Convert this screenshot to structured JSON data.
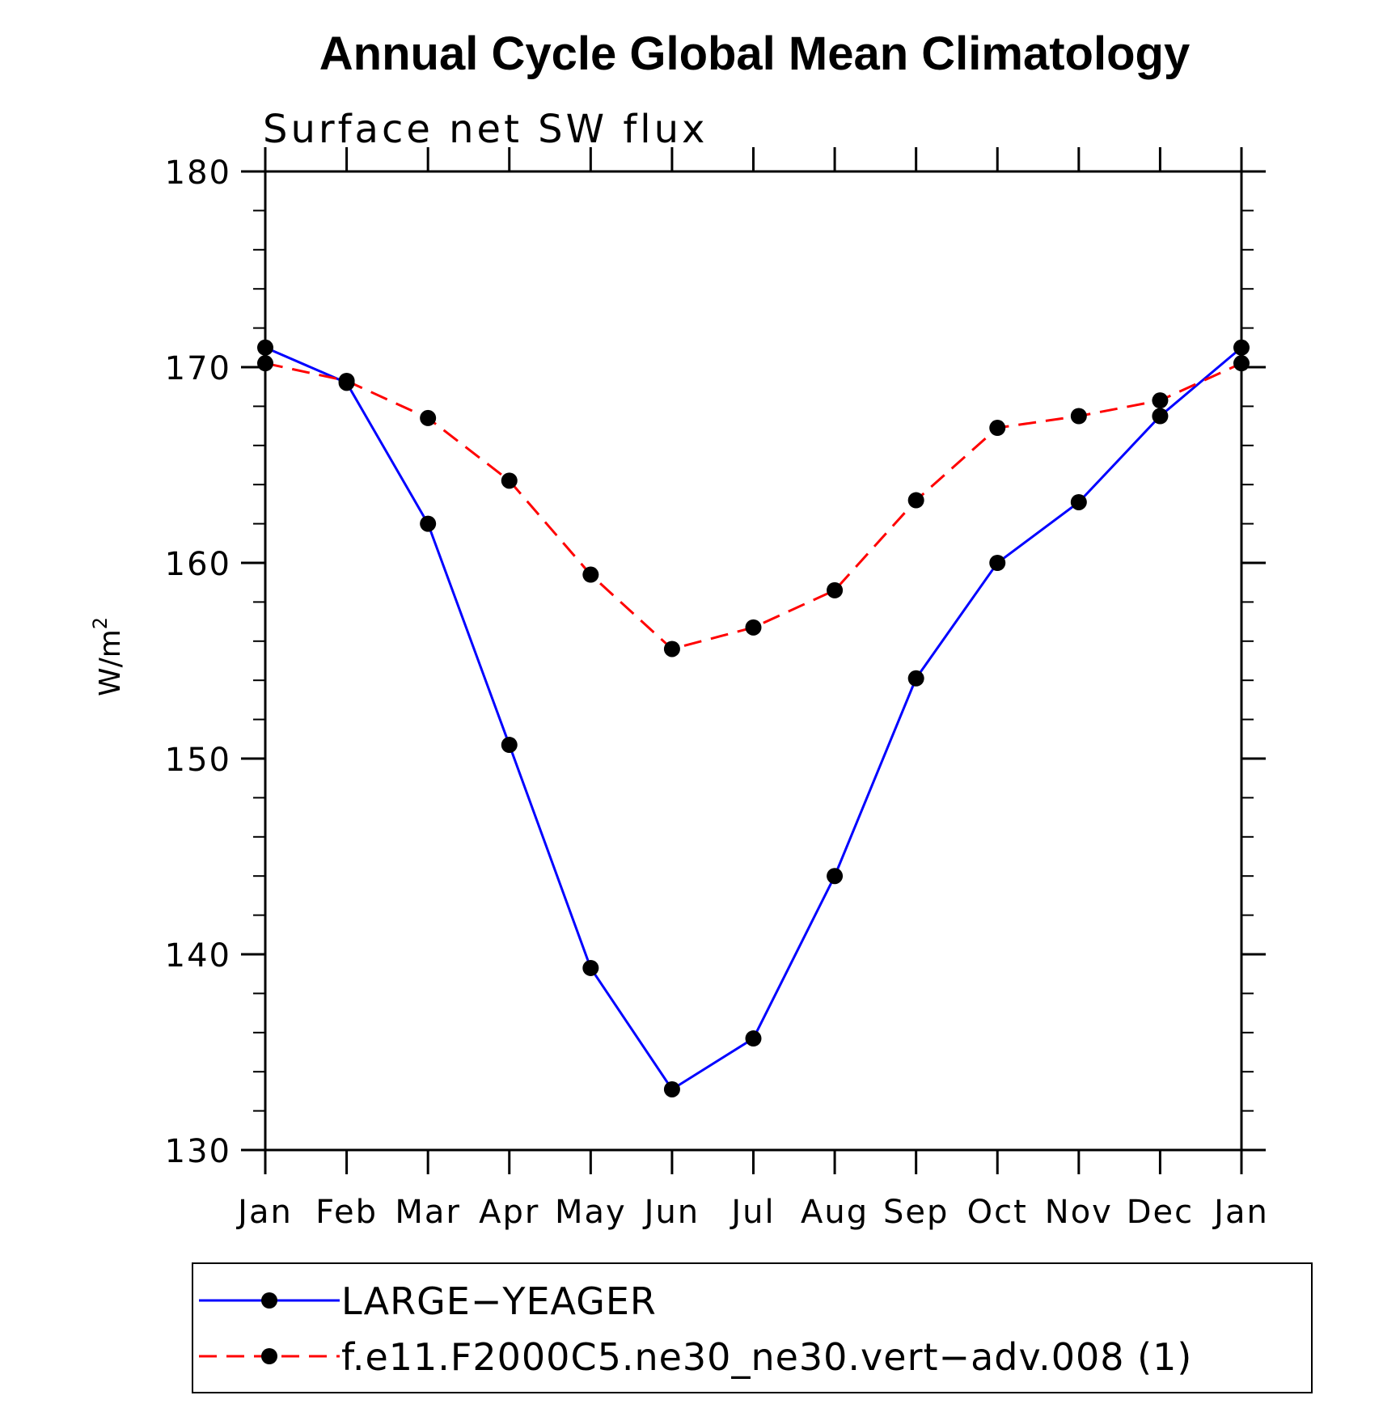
{
  "chart_data": {
    "type": "line",
    "title": "Annual Cycle Global Mean Climatology",
    "subtitle": "Surface net SW flux",
    "ylabel_base": "W/m",
    "ylabel_sup": "2",
    "ylim": [
      130,
      180
    ],
    "yticks": [
      130,
      140,
      150,
      160,
      170,
      180
    ],
    "yminor_step": 2,
    "categories": [
      "Jan",
      "Feb",
      "Mar",
      "Apr",
      "May",
      "Jun",
      "Jul",
      "Aug",
      "Sep",
      "Oct",
      "Nov",
      "Dec",
      "Jan"
    ],
    "grid": false,
    "legend_position": "bottom",
    "series": [
      {
        "name": "LARGE−YEAGER",
        "color": "#0000ff",
        "dash": "solid",
        "marker": "circle",
        "values": [
          171.0,
          169.2,
          162.0,
          150.7,
          139.3,
          133.1,
          135.7,
          144.0,
          154.1,
          160.0,
          163.1,
          167.5,
          171.0
        ]
      },
      {
        "name": "f.e11.F2000C5.ne30_ne30.vert−adv.008 (1)",
        "color": "#ff0000",
        "dash": "dashed",
        "marker": "circle",
        "values": [
          170.2,
          169.3,
          167.4,
          164.2,
          159.4,
          155.6,
          156.7,
          158.6,
          163.2,
          166.9,
          167.5,
          168.3,
          170.2
        ]
      }
    ]
  }
}
